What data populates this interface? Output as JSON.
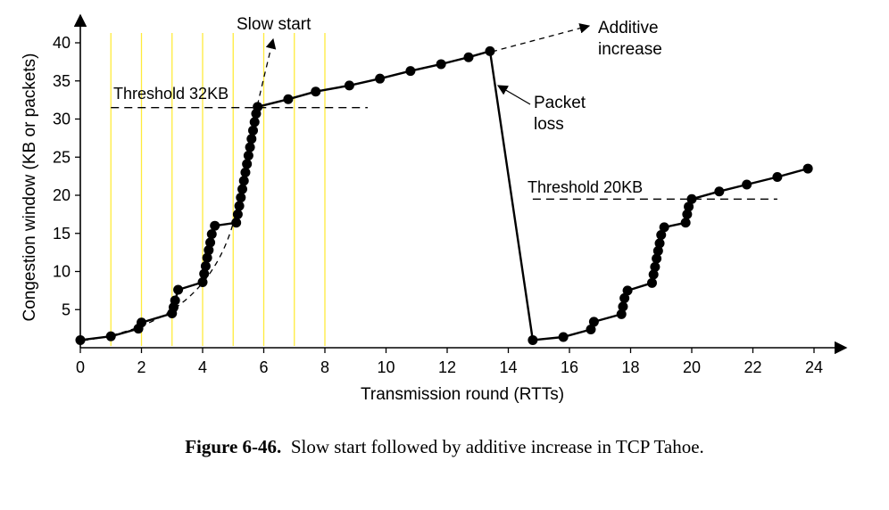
{
  "chart_data": {
    "type": "line",
    "xlabel": "Transmission round (RTTs)",
    "ylabel": "Congestion window (KB or packets)",
    "xlim": [
      0,
      24
    ],
    "ylim": [
      0,
      40
    ],
    "x_ticks": [
      "0",
      "2",
      "4",
      "6",
      "8",
      "10",
      "12",
      "14",
      "16",
      "18",
      "20",
      "22",
      "24"
    ],
    "y_ticks": [
      "5",
      "10",
      "15",
      "20",
      "25",
      "30",
      "35",
      "40"
    ],
    "round_markers_x": [
      1,
      2,
      3,
      4,
      5,
      6,
      7,
      8
    ],
    "thresholds": [
      {
        "label": "Threshold 32KB",
        "y": 31.5,
        "x_range": [
          1,
          9.4
        ]
      },
      {
        "label": "Threshold 20KB",
        "y": 19.5,
        "x_range": [
          14.8,
          22.8
        ]
      }
    ],
    "series": [
      {
        "points": [
          [
            0,
            1
          ],
          [
            1,
            1.5
          ],
          [
            1.9,
            2.5
          ],
          [
            2,
            3.3
          ],
          [
            3,
            4.5
          ],
          [
            3.05,
            5.3
          ],
          [
            3.1,
            6.2
          ],
          [
            3.2,
            7.6
          ],
          [
            4,
            8.6
          ],
          [
            4.05,
            9.7
          ],
          [
            4.1,
            10.7
          ],
          [
            4.15,
            11.8
          ],
          [
            4.2,
            12.8
          ],
          [
            4.25,
            13.8
          ],
          [
            4.3,
            14.9
          ],
          [
            4.4,
            16
          ],
          [
            5.1,
            16.4
          ],
          [
            5.15,
            17.5
          ],
          [
            5.2,
            18.6
          ],
          [
            5.25,
            19.7
          ],
          [
            5.3,
            20.8
          ],
          [
            5.35,
            21.9
          ],
          [
            5.4,
            23
          ],
          [
            5.45,
            24.1
          ],
          [
            5.5,
            25.2
          ],
          [
            5.55,
            26.3
          ],
          [
            5.6,
            27.4
          ],
          [
            5.65,
            28.5
          ],
          [
            5.7,
            29.6
          ],
          [
            5.75,
            30.7
          ],
          [
            5.8,
            31.6
          ],
          [
            6.8,
            32.6
          ],
          [
            7.7,
            33.6
          ],
          [
            8.8,
            34.4
          ],
          [
            9.8,
            35.3
          ],
          [
            10.8,
            36.3
          ],
          [
            11.8,
            37.2
          ],
          [
            12.7,
            38.1
          ],
          [
            13.4,
            38.9
          ],
          [
            14.8,
            1
          ],
          [
            15.8,
            1.4
          ],
          [
            16.7,
            2.4
          ],
          [
            16.8,
            3.4
          ],
          [
            17.7,
            4.4
          ],
          [
            17.75,
            5.4
          ],
          [
            17.8,
            6.5
          ],
          [
            17.9,
            7.5
          ],
          [
            18.7,
            8.5
          ],
          [
            18.75,
            9.6
          ],
          [
            18.8,
            10.6
          ],
          [
            18.85,
            11.7
          ],
          [
            18.9,
            12.7
          ],
          [
            18.95,
            13.7
          ],
          [
            19,
            14.8
          ],
          [
            19.1,
            15.8
          ],
          [
            19.8,
            16.4
          ],
          [
            19.85,
            17.5
          ],
          [
            19.9,
            18.5
          ],
          [
            20,
            19.5
          ],
          [
            20.9,
            20.5
          ],
          [
            21.8,
            21.4
          ],
          [
            22.8,
            22.4
          ],
          [
            23.8,
            23.5
          ]
        ]
      }
    ],
    "annotations": [
      {
        "text": "Slow start",
        "kind": "dashed-curve"
      },
      {
        "text_lines": [
          "Additive",
          "increase"
        ],
        "kind": "dashed-arrow"
      },
      {
        "text_lines": [
          "Packet",
          "loss"
        ],
        "kind": "arrow"
      }
    ],
    "colors": {
      "line": "#000000",
      "round_marker": "#ffeb3b",
      "threshold": "#000000"
    },
    "grid": false
  },
  "caption": {
    "label": "Figure 6-46.",
    "text": "Slow start followed by additive increase in TCP Tahoe."
  }
}
